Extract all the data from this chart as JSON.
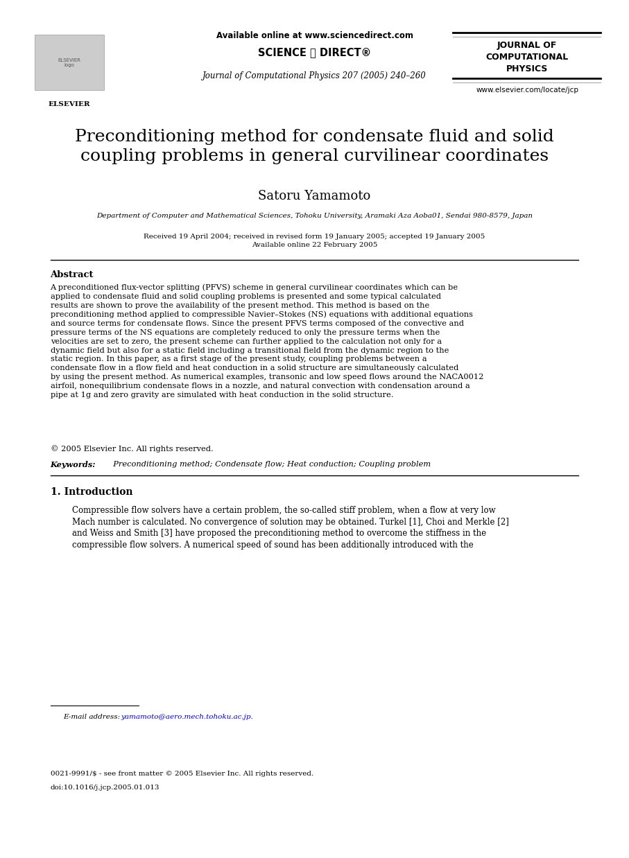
{
  "bg_color": "#ffffff",
  "header": {
    "available_online": "Available online at www.sciencedirect.com",
    "journal_name_center": "Journal of Computational Physics 207 (2005) 240–260",
    "journal_name_right": "JOURNAL OF\nCOMPUTATIONAL\nPHYSICS",
    "website": "www.elsevier.com/locate/jcp",
    "elsevier_label": "ELSEVIER"
  },
  "title": "Preconditioning method for condensate fluid and solid\ncoupling problems in general curvilinear coordinates",
  "author": "Satoru Yamamoto",
  "affiliation": "Department of Computer and Mathematical Sciences, Tohoku University, Aramaki Aza Aoba01, Sendai 980-8579, Japan",
  "dates": "Received 19 April 2004; received in revised form 19 January 2005; accepted 19 January 2005\nAvailable online 22 February 2005",
  "abstract_title": "Abstract",
  "abstract_text": "A preconditioned flux-vector splitting (PFVS) scheme in general curvilinear coordinates which can be applied to condensate fluid and solid coupling problems is presented and some typical calculated results are shown to prove the availability of the present method. This method is based on the preconditioning method applied to compressible Navier–Stokes (NS) equations with additional equations and source terms for condensate flows. Since the present PFVS terms composed of the convective and pressure terms of the NS equations are completely reduced to only the pressure terms when the velocities are set to zero, the present scheme can further applied to the calculation not only for a dynamic field but also for a static field including a transitional field from the dynamic region to the static region. In this paper, as a first stage of the present study, coupling problems between a condensate flow in a flow field and heat conduction in a solid structure are simultaneously calculated by using the present method. As numerical examples, transonic and low speed flows around the NACA0012 airfoil, nonequilibrium condensate flows in a nozzle, and natural convection with condensation around a pipe at 1g and zero gravity are simulated with heat conduction in the solid structure.",
  "copyright": "© 2005 Elsevier Inc. All rights reserved.",
  "keywords_bold": "Keywords:",
  "keywords_rest": "  Preconditioning method; Condensate flow; Heat conduction; Coupling problem",
  "section1_title": "1. Introduction",
  "section1_text": "Compressible flow solvers have a certain problem, the so-called stiff problem, when a flow at very low Mach number is calculated. No convergence of solution may be obtained. Turkel [1], Choi and Merkle [2] and Weiss and Smith [3] have proposed the preconditioning method to overcome the stiffness in the compressible flow solvers. A numerical speed of sound has been additionally introduced with the",
  "email_label": "E-mail address:",
  "email": "yamamoto@aero.mech.tohoku.ac.jp.",
  "footer_line1": "0021-9991/$ - see front matter © 2005 Elsevier Inc. All rights reserved.",
  "footer_line2": "doi:10.1016/j.jcp.2005.01.013",
  "colors": {
    "black": "#000000",
    "blue_link": "#0000cc",
    "gray_line": "#888888"
  }
}
